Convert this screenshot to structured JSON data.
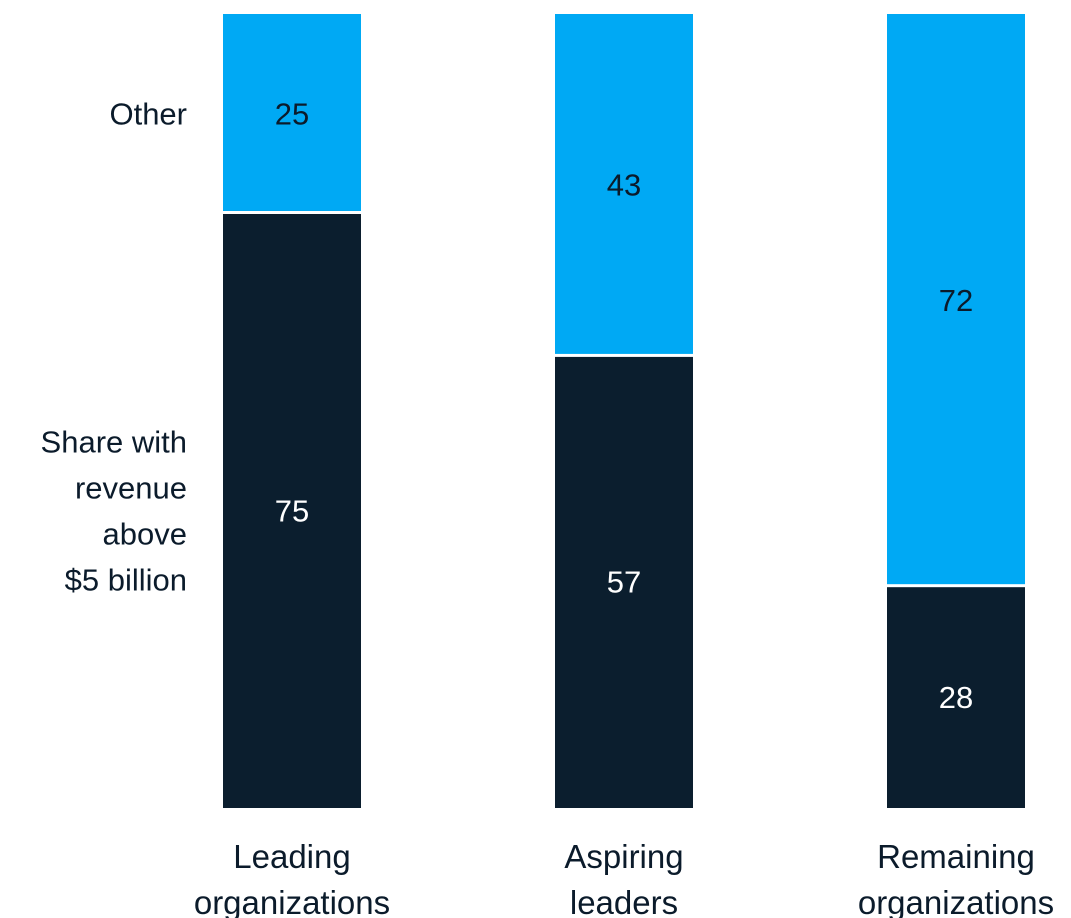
{
  "chart_data": {
    "type": "bar",
    "stacked": true,
    "categories": [
      "Leading organizations",
      "Aspiring leaders",
      "Remaining organizations"
    ],
    "category_lines": [
      [
        "Leading",
        "organizations"
      ],
      [
        "Aspiring",
        "leaders"
      ],
      [
        "Remaining",
        "organizations"
      ]
    ],
    "series": [
      {
        "name": "Share with revenue above $5 billion",
        "name_lines": [
          "Share with",
          "revenue",
          "above",
          "$5 billion"
        ],
        "values": [
          75,
          57,
          28
        ],
        "color": "#0b1e2e",
        "label_color": "#ffffff"
      },
      {
        "name": "Other",
        "name_lines": [
          "Other"
        ],
        "values": [
          25,
          43,
          72
        ],
        "color": "#00a9f4",
        "label_color": "#0b1b2b"
      }
    ],
    "ylim": [
      0,
      100
    ],
    "grid": false,
    "legend": "left"
  }
}
